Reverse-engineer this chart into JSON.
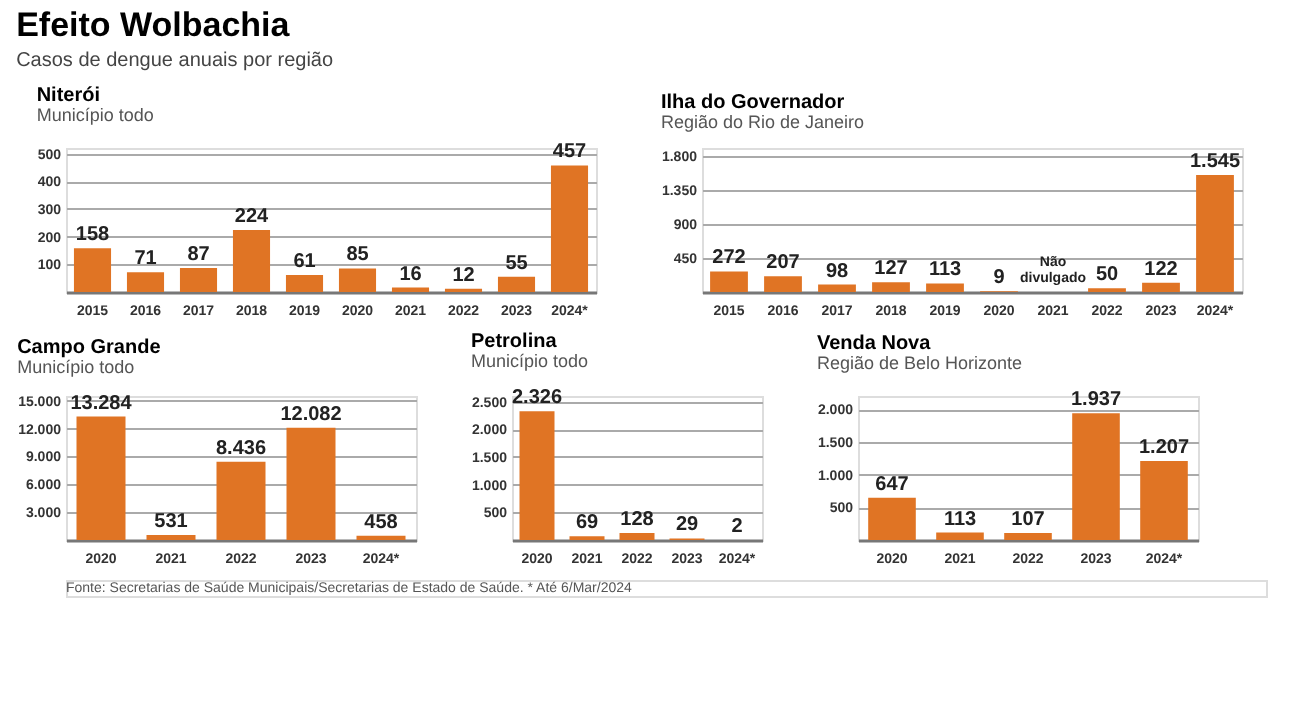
{
  "chart_data": [
    {
      "type": "bar",
      "title": "Niterói",
      "subtitle": "Município todo",
      "annotations": [
        "Efeito Wolbachia",
        "Casos de dengue anuais por região"
      ],
      "categories": [
        "2015",
        "2016",
        "2017",
        "2018",
        "2019",
        "2020",
        "2021",
        "2022",
        "2023",
        "2024*"
      ],
      "values": [
        158,
        71,
        87,
        224,
        61,
        85,
        16,
        12,
        55,
        457
      ],
      "value_labels": [
        "158",
        "71",
        "87",
        "224",
        "61",
        "85",
        "16",
        "12",
        "55",
        "457"
      ],
      "color": "#e07424",
      "ylim": [
        0,
        520
      ],
      "yticks": [
        100,
        200,
        300,
        400,
        500
      ],
      "grid": "y"
    },
    {
      "type": "bar",
      "title": "Ilha do Governador",
      "subtitle": "Região do Rio de Janeiro",
      "categories": [
        "2015",
        "2016",
        "2017",
        "2018",
        "2019",
        "2020",
        "2021",
        "2022",
        "2023",
        "2024*"
      ],
      "values": [
        272,
        207,
        98,
        127,
        113,
        9,
        null,
        50,
        122,
        1545
      ],
      "value_labels": [
        "272",
        "207",
        "98",
        "127",
        "113",
        "9",
        "Não divulgado",
        "50",
        "122",
        "1.545"
      ],
      "color": "#e07424",
      "ylim": [
        0,
        1900
      ],
      "yticks": [
        450,
        900,
        {
          "value": 1350,
          "label": "1.350"
        },
        {
          "value": 1800,
          "label": "1.800"
        }
      ],
      "grid": "y"
    },
    {
      "type": "bar",
      "title": "Campo Grande",
      "subtitle": "Município todo",
      "categories": [
        "2020",
        "2021",
        "2022",
        "2023",
        "2024*"
      ],
      "values": [
        13284,
        531,
        8436,
        12082,
        458
      ],
      "value_labels": [
        "13.284",
        "531",
        "8.436",
        "12.082",
        "458"
      ],
      "color": "#e07424",
      "ylim": [
        0,
        15500
      ],
      "yticks": [
        {
          "value": 3000,
          "label": "3.000"
        },
        {
          "value": 6000,
          "label": "6.000"
        },
        {
          "value": 9000,
          "label": "9.000"
        },
        {
          "value": 12000,
          "label": "12.000"
        },
        {
          "value": 15000,
          "label": "15.000"
        }
      ],
      "grid": "y"
    },
    {
      "type": "bar",
      "title": "Petrolina",
      "subtitle": "Município todo",
      "categories": [
        "2020",
        "2021",
        "2022",
        "2023",
        "2024*"
      ],
      "values": [
        2326,
        69,
        128,
        29,
        2
      ],
      "value_labels": [
        "2.326",
        "69",
        "128",
        "29",
        "2"
      ],
      "color": "#e07424",
      "ylim": [
        0,
        2600
      ],
      "yticks": [
        500,
        {
          "value": 1000,
          "label": "1.000"
        },
        {
          "value": 1500,
          "label": "1.500"
        },
        {
          "value": 2000,
          "label": "2.000"
        },
        {
          "value": 2500,
          "label": "2.500"
        }
      ],
      "grid": "y"
    },
    {
      "type": "bar",
      "title": "Venda Nova",
      "subtitle": "Região de Belo Horizonte",
      "annotations": [
        "Fonte: Secretarias de Saúde Municipais/Secretarias de Estado de Saúde. * Até 6/Mar/2024"
      ],
      "categories": [
        "2020",
        "2021",
        "2022",
        "2023",
        "2024*"
      ],
      "values": [
        647,
        113,
        107,
        1937,
        1207
      ],
      "value_labels": [
        "647",
        "113",
        "107",
        "1.937",
        "1.207"
      ],
      "color": "#e07424",
      "ylim": [
        0,
        2200
      ],
      "yticks": [
        500,
        {
          "value": 1000,
          "label": "1.000"
        },
        {
          "value": 1500,
          "label": "1.500"
        },
        {
          "value": 2000,
          "label": "2.000"
        }
      ],
      "grid": "y"
    }
  ]
}
